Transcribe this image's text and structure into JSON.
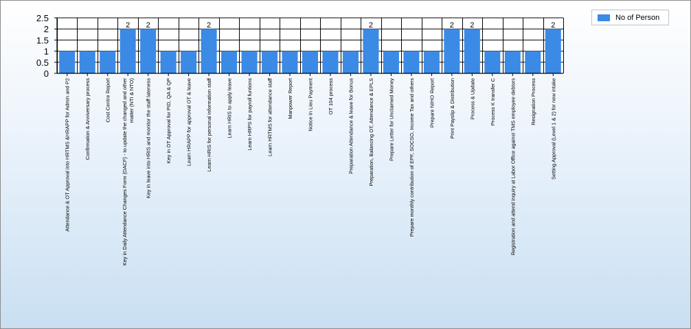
{
  "chart_data": {
    "type": "bar",
    "title": "",
    "xlabel": "",
    "ylabel": "",
    "ylim": [
      0,
      2.5
    ],
    "yticks": [
      "0",
      "0.5",
      "1",
      "1.5",
      "2",
      "2.5"
    ],
    "grid": true,
    "legend_position": "top-right",
    "categories": [
      "Attendance & OT Approval into HRTMS &HRAPP for Admin and P2",
      "Confirmation & Anniversary process",
      "Cost Centre Report",
      "Key in Daily Attendance Changes Form (DACF) - to update the changed and other matter (NTI & NTO)",
      "Key in leave into HRIS and monitor the staff lateness",
      "Key in OT Approval for PID, QA & QP",
      "Learn HRAPP for approval OT & leave",
      "Learn HRIS for personal information staff",
      "Learn HRIS to apply leave",
      "Learn HRPS for payroll funtions",
      "Learn HRTMS for attendance staff",
      "Manpower Report",
      "Notice In Lieu Payment",
      "OT 104 process",
      "Preparation Attendance & leave for Bonus",
      "Preparation, Balancing OT, Attendance & EPLS",
      "Prepare Letter for Unclaimed Money",
      "Prepare monthly contribution of EPF, SOCSO, Income Tax and others",
      "Prepare NIHO Report",
      "Print Payslip & Distribution",
      "Process & Update",
      "Process K transfer C",
      "Registration and attend inquiry at Labor Office against TMS employee debtors",
      "Resignation Process",
      "Setting Approval (Level 1 & 2) for new intake"
    ],
    "series": [
      {
        "name": "No of Person",
        "color": "#3b8ae6",
        "values": [
          1,
          1,
          1,
          2,
          2,
          1,
          1,
          2,
          1,
          1,
          1,
          1,
          1,
          1,
          1,
          2,
          1,
          1,
          1,
          2,
          2,
          1,
          1,
          1,
          2
        ],
        "data_labels": [
          "",
          "",
          "",
          "2",
          "2",
          "",
          "",
          "2",
          "",
          "",
          "",
          "",
          "",
          "",
          "",
          "2",
          "",
          "",
          "",
          "2",
          "2",
          "",
          "",
          "",
          "2"
        ]
      }
    ]
  }
}
